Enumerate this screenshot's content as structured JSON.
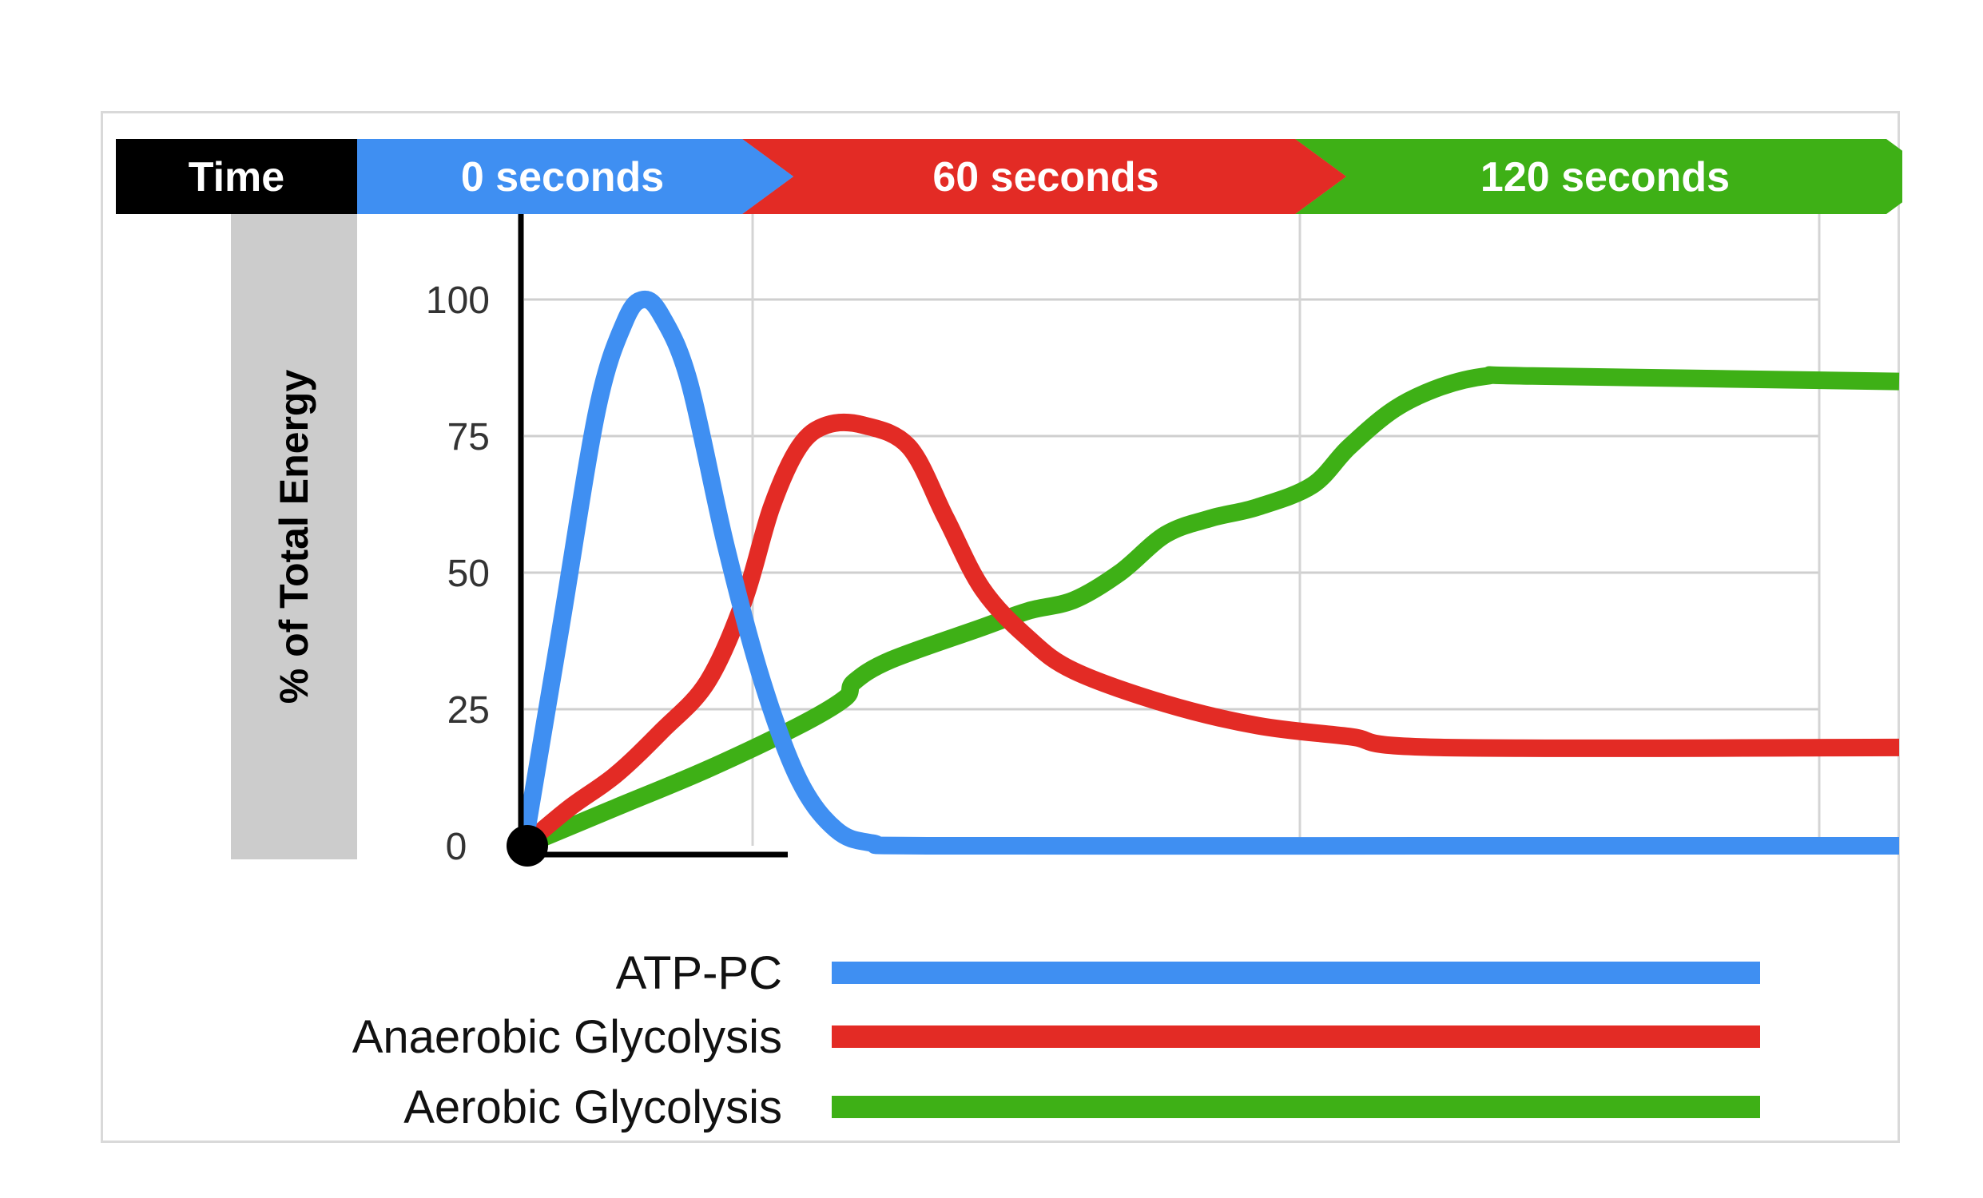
{
  "chart_data": {
    "type": "line",
    "header": {
      "time_label": "Time",
      "phases": [
        {
          "label": "0 seconds",
          "color": "#3f8ff2"
        },
        {
          "label": "60 seconds",
          "color": "#e32b25"
        },
        {
          "label": "120 seconds",
          "color": "#3eb016"
        }
      ]
    },
    "ylabel": "% of Total Energy",
    "yticks": [
      0,
      25,
      50,
      75,
      100
    ],
    "ylim": [
      0,
      100
    ],
    "xlim": [
      0,
      150
    ],
    "grid": true,
    "legend_placement": "bottom",
    "series": [
      {
        "name": "ATP-PC",
        "color": "#3f8ff2",
        "points": [
          [
            0,
            0
          ],
          [
            4,
            40
          ],
          [
            8,
            80
          ],
          [
            11,
            96
          ],
          [
            13,
            100
          ],
          [
            15,
            97
          ],
          [
            18,
            85
          ],
          [
            22,
            55
          ],
          [
            26,
            30
          ],
          [
            30,
            12
          ],
          [
            34,
            3
          ],
          [
            38,
            0.5
          ],
          [
            45,
            0
          ],
          [
            100,
            0
          ],
          [
            150,
            0
          ]
        ]
      },
      {
        "name": "Anaerobic Glycolysis",
        "color": "#e32b25",
        "points": [
          [
            0,
            0
          ],
          [
            5,
            7
          ],
          [
            10,
            13
          ],
          [
            15,
            21
          ],
          [
            20,
            30
          ],
          [
            24,
            45
          ],
          [
            27,
            62
          ],
          [
            30,
            73
          ],
          [
            33,
            77
          ],
          [
            37,
            77
          ],
          [
            42,
            73
          ],
          [
            46,
            60
          ],
          [
            50,
            47
          ],
          [
            55,
            38
          ],
          [
            60,
            32
          ],
          [
            70,
            26
          ],
          [
            80,
            22
          ],
          [
            90,
            20
          ],
          [
            100,
            18
          ],
          [
            150,
            18
          ]
        ]
      },
      {
        "name": "Aerobic Glycolysis",
        "color": "#3eb016",
        "points": [
          [
            0,
            0
          ],
          [
            10,
            7
          ],
          [
            20,
            14
          ],
          [
            30,
            22
          ],
          [
            35,
            27
          ],
          [
            36,
            30
          ],
          [
            40,
            34
          ],
          [
            50,
            40
          ],
          [
            55,
            43
          ],
          [
            60,
            45
          ],
          [
            65,
            50
          ],
          [
            70,
            57
          ],
          [
            75,
            60
          ],
          [
            80,
            62
          ],
          [
            86,
            66
          ],
          [
            90,
            73
          ],
          [
            95,
            80
          ],
          [
            100,
            84
          ],
          [
            105,
            86
          ],
          [
            110,
            86
          ],
          [
            150,
            85
          ]
        ]
      }
    ]
  }
}
